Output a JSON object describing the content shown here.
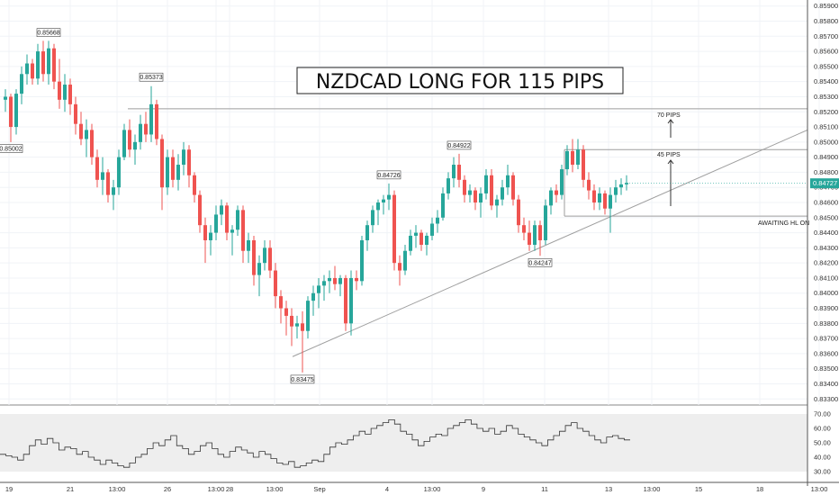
{
  "title": "NZDCAD LONG FOR 115 PIPS",
  "colors": {
    "up": "#26a69a",
    "down": "#ef5350",
    "line": "#9e9e9e",
    "price_tag": "#26a69a"
  },
  "current_price": "0.84727",
  "chart_data": [
    {
      "type": "candlestick",
      "title": "NZDCAD LONG FOR 115 PIPS",
      "ylim": [
        0.8326,
        0.8594
      ],
      "y_ticks": [
        "0.85900",
        "0.85800",
        "0.85700",
        "0.85600",
        "0.85500",
        "0.85400",
        "0.85300",
        "0.85200",
        "0.85100",
        "0.85000",
        "0.84900",
        "0.84800",
        "0.84700",
        "0.84600",
        "0.84500",
        "0.84400",
        "0.84300",
        "0.84200",
        "0.84100",
        "0.84000",
        "0.83900",
        "0.83800",
        "0.83700",
        "0.83600",
        "0.83500",
        "0.83400",
        "0.83300"
      ],
      "x_ticks": [
        "19",
        "21",
        "13:00",
        "26",
        "13:00",
        "28",
        "13:00",
        "Sep",
        "4",
        "13:00",
        "9",
        "11",
        "13",
        "13:00",
        "15",
        "18",
        "13:00"
      ],
      "grid": true,
      "swing_labels": [
        {
          "idx": 8,
          "price": 0.85668,
          "label": "0.85668",
          "pos": "above"
        },
        {
          "idx": 1,
          "price": 0.85002,
          "label": "0.85002",
          "pos": "below"
        },
        {
          "idx": 27,
          "price": 0.85373,
          "label": "0.85373",
          "pos": "above"
        },
        {
          "idx": 55,
          "price": 0.83475,
          "label": "0.83475",
          "pos": "below"
        },
        {
          "idx": 71,
          "price": 0.84726,
          "label": "0.84726",
          "pos": "above"
        },
        {
          "idx": 84,
          "price": 0.84922,
          "label": "0.84922",
          "pos": "above"
        },
        {
          "idx": 99,
          "price": 0.84247,
          "label": "0.84247",
          "pos": "below"
        }
      ],
      "annotations": [
        {
          "text": "70 PIPS"
        },
        {
          "text": "45 PIPS"
        },
        {
          "text": "AWAITING HL ON"
        }
      ],
      "levels": {
        "resistance_high": 0.8522,
        "target_line": 0.8495,
        "entry_line": 0.8451,
        "trend_start": [
          53,
          0.8358
        ],
        "trend_end": [
          150,
          0.8508
        ]
      },
      "candles": [
        {
          "o": 0.8528,
          "h": 0.8535,
          "l": 0.852,
          "c": 0.853
        },
        {
          "o": 0.853,
          "h": 0.8532,
          "l": 0.85,
          "c": 0.851
        },
        {
          "o": 0.851,
          "h": 0.8535,
          "l": 0.8505,
          "c": 0.8532
        },
        {
          "o": 0.8532,
          "h": 0.855,
          "l": 0.8525,
          "c": 0.8545
        },
        {
          "o": 0.8545,
          "h": 0.8558,
          "l": 0.8538,
          "c": 0.8552
        },
        {
          "o": 0.8552,
          "h": 0.8555,
          "l": 0.8538,
          "c": 0.8542
        },
        {
          "o": 0.8542,
          "h": 0.8565,
          "l": 0.8538,
          "c": 0.856
        },
        {
          "o": 0.856,
          "h": 0.8567,
          "l": 0.854,
          "c": 0.8545
        },
        {
          "o": 0.8545,
          "h": 0.8567,
          "l": 0.8538,
          "c": 0.8562
        },
        {
          "o": 0.8562,
          "h": 0.8565,
          "l": 0.8535,
          "c": 0.854
        },
        {
          "o": 0.854,
          "h": 0.8555,
          "l": 0.8522,
          "c": 0.8528
        },
        {
          "o": 0.8528,
          "h": 0.8545,
          "l": 0.852,
          "c": 0.8538
        },
        {
          "o": 0.8538,
          "h": 0.8542,
          "l": 0.8518,
          "c": 0.8525
        },
        {
          "o": 0.8525,
          "h": 0.853,
          "l": 0.8505,
          "c": 0.8512
        },
        {
          "o": 0.8512,
          "h": 0.852,
          "l": 0.8498,
          "c": 0.8502
        },
        {
          "o": 0.8502,
          "h": 0.8515,
          "l": 0.849,
          "c": 0.8508
        },
        {
          "o": 0.8508,
          "h": 0.8512,
          "l": 0.8485,
          "c": 0.849
        },
        {
          "o": 0.849,
          "h": 0.8495,
          "l": 0.847,
          "c": 0.8475
        },
        {
          "o": 0.8475,
          "h": 0.849,
          "l": 0.8465,
          "c": 0.848
        },
        {
          "o": 0.848,
          "h": 0.8482,
          "l": 0.846,
          "c": 0.8465
        },
        {
          "o": 0.8465,
          "h": 0.8475,
          "l": 0.8455,
          "c": 0.847
        },
        {
          "o": 0.847,
          "h": 0.8495,
          "l": 0.8465,
          "c": 0.849
        },
        {
          "o": 0.849,
          "h": 0.8512,
          "l": 0.8488,
          "c": 0.8508
        },
        {
          "o": 0.8508,
          "h": 0.8515,
          "l": 0.849,
          "c": 0.8495
        },
        {
          "o": 0.8495,
          "h": 0.8505,
          "l": 0.8485,
          "c": 0.85
        },
        {
          "o": 0.85,
          "h": 0.8518,
          "l": 0.8495,
          "c": 0.8512
        },
        {
          "o": 0.8512,
          "h": 0.852,
          "l": 0.85,
          "c": 0.8505
        },
        {
          "o": 0.8505,
          "h": 0.8537,
          "l": 0.85,
          "c": 0.8525
        },
        {
          "o": 0.8525,
          "h": 0.8528,
          "l": 0.8498,
          "c": 0.8502
        },
        {
          "o": 0.8502,
          "h": 0.8505,
          "l": 0.8455,
          "c": 0.847
        },
        {
          "o": 0.847,
          "h": 0.8495,
          "l": 0.8465,
          "c": 0.849
        },
        {
          "o": 0.849,
          "h": 0.8495,
          "l": 0.847,
          "c": 0.8475
        },
        {
          "o": 0.8475,
          "h": 0.8492,
          "l": 0.8468,
          "c": 0.8485
        },
        {
          "o": 0.8485,
          "h": 0.85,
          "l": 0.8478,
          "c": 0.8495
        },
        {
          "o": 0.8495,
          "h": 0.8498,
          "l": 0.847,
          "c": 0.8478
        },
        {
          "o": 0.8478,
          "h": 0.848,
          "l": 0.846,
          "c": 0.8465
        },
        {
          "o": 0.8465,
          "h": 0.8468,
          "l": 0.844,
          "c": 0.8445
        },
        {
          "o": 0.8445,
          "h": 0.845,
          "l": 0.842,
          "c": 0.8435
        },
        {
          "o": 0.8435,
          "h": 0.8445,
          "l": 0.8425,
          "c": 0.844
        },
        {
          "o": 0.844,
          "h": 0.8458,
          "l": 0.8435,
          "c": 0.8452
        },
        {
          "o": 0.8452,
          "h": 0.8462,
          "l": 0.8445,
          "c": 0.8458
        },
        {
          "o": 0.8458,
          "h": 0.846,
          "l": 0.8435,
          "c": 0.844
        },
        {
          "o": 0.844,
          "h": 0.8445,
          "l": 0.8425,
          "c": 0.8442
        },
        {
          "o": 0.8442,
          "h": 0.8458,
          "l": 0.8438,
          "c": 0.8455
        },
        {
          "o": 0.8455,
          "h": 0.8458,
          "l": 0.842,
          "c": 0.8428
        },
        {
          "o": 0.8428,
          "h": 0.844,
          "l": 0.842,
          "c": 0.8435
        },
        {
          "o": 0.8435,
          "h": 0.8438,
          "l": 0.8405,
          "c": 0.8412
        },
        {
          "o": 0.8412,
          "h": 0.8425,
          "l": 0.8398,
          "c": 0.842
        },
        {
          "o": 0.842,
          "h": 0.8435,
          "l": 0.8415,
          "c": 0.843
        },
        {
          "o": 0.843,
          "h": 0.8435,
          "l": 0.841,
          "c": 0.8415
        },
        {
          "o": 0.8415,
          "h": 0.842,
          "l": 0.839,
          "c": 0.8398
        },
        {
          "o": 0.8398,
          "h": 0.8402,
          "l": 0.838,
          "c": 0.839
        },
        {
          "o": 0.839,
          "h": 0.8395,
          "l": 0.8372,
          "c": 0.8385
        },
        {
          "o": 0.8385,
          "h": 0.839,
          "l": 0.8365,
          "c": 0.8378
        },
        {
          "o": 0.8378,
          "h": 0.8385,
          "l": 0.837,
          "c": 0.838
        },
        {
          "o": 0.838,
          "h": 0.8388,
          "l": 0.83475,
          "c": 0.8375
        },
        {
          "o": 0.8375,
          "h": 0.8398,
          "l": 0.837,
          "c": 0.8395
        },
        {
          "o": 0.8395,
          "h": 0.8405,
          "l": 0.8385,
          "c": 0.84
        },
        {
          "o": 0.84,
          "h": 0.841,
          "l": 0.839,
          "c": 0.8405
        },
        {
          "o": 0.8405,
          "h": 0.8412,
          "l": 0.8395,
          "c": 0.8408
        },
        {
          "o": 0.8408,
          "h": 0.8415,
          "l": 0.84,
          "c": 0.841
        },
        {
          "o": 0.841,
          "h": 0.8418,
          "l": 0.8402,
          "c": 0.8406
        },
        {
          "o": 0.8406,
          "h": 0.8412,
          "l": 0.8398,
          "c": 0.841
        },
        {
          "o": 0.841,
          "h": 0.8412,
          "l": 0.8375,
          "c": 0.838
        },
        {
          "o": 0.838,
          "h": 0.8415,
          "l": 0.8372,
          "c": 0.841
        },
        {
          "o": 0.841,
          "h": 0.8415,
          "l": 0.8402,
          "c": 0.8408
        },
        {
          "o": 0.8408,
          "h": 0.8438,
          "l": 0.8405,
          "c": 0.8435
        },
        {
          "o": 0.8435,
          "h": 0.8448,
          "l": 0.8428,
          "c": 0.8445
        },
        {
          "o": 0.8445,
          "h": 0.8458,
          "l": 0.844,
          "c": 0.8455
        },
        {
          "o": 0.8455,
          "h": 0.8462,
          "l": 0.8445,
          "c": 0.846
        },
        {
          "o": 0.846,
          "h": 0.8465,
          "l": 0.8452,
          "c": 0.8462
        },
        {
          "o": 0.8462,
          "h": 0.84726,
          "l": 0.8455,
          "c": 0.8465
        },
        {
          "o": 0.8465,
          "h": 0.8468,
          "l": 0.8415,
          "c": 0.842
        },
        {
          "o": 0.842,
          "h": 0.8425,
          "l": 0.8405,
          "c": 0.8415
        },
        {
          "o": 0.8415,
          "h": 0.8432,
          "l": 0.8412,
          "c": 0.8428
        },
        {
          "o": 0.8428,
          "h": 0.8442,
          "l": 0.8425,
          "c": 0.8438
        },
        {
          "o": 0.8438,
          "h": 0.8445,
          "l": 0.843,
          "c": 0.844
        },
        {
          "o": 0.844,
          "h": 0.8442,
          "l": 0.8428,
          "c": 0.8432
        },
        {
          "o": 0.8432,
          "h": 0.844,
          "l": 0.8425,
          "c": 0.8438
        },
        {
          "o": 0.8438,
          "h": 0.845,
          "l": 0.8435,
          "c": 0.8446
        },
        {
          "o": 0.8446,
          "h": 0.8455,
          "l": 0.844,
          "c": 0.845
        },
        {
          "o": 0.845,
          "h": 0.847,
          "l": 0.8448,
          "c": 0.8466
        },
        {
          "o": 0.8466,
          "h": 0.848,
          "l": 0.8462,
          "c": 0.8476
        },
        {
          "o": 0.8476,
          "h": 0.849,
          "l": 0.847,
          "c": 0.8485
        },
        {
          "o": 0.8485,
          "h": 0.84922,
          "l": 0.847,
          "c": 0.8475
        },
        {
          "o": 0.8475,
          "h": 0.8478,
          "l": 0.846,
          "c": 0.8465
        },
        {
          "o": 0.8465,
          "h": 0.8472,
          "l": 0.846,
          "c": 0.8468
        },
        {
          "o": 0.8468,
          "h": 0.847,
          "l": 0.8455,
          "c": 0.846
        },
        {
          "o": 0.846,
          "h": 0.847,
          "l": 0.845,
          "c": 0.8466
        },
        {
          "o": 0.8466,
          "h": 0.8482,
          "l": 0.8462,
          "c": 0.8478
        },
        {
          "o": 0.8478,
          "h": 0.8482,
          "l": 0.8455,
          "c": 0.8458
        },
        {
          "o": 0.8458,
          "h": 0.8465,
          "l": 0.845,
          "c": 0.8462
        },
        {
          "o": 0.8462,
          "h": 0.8475,
          "l": 0.8458,
          "c": 0.847
        },
        {
          "o": 0.847,
          "h": 0.8485,
          "l": 0.8465,
          "c": 0.8478
        },
        {
          "o": 0.8478,
          "h": 0.848,
          "l": 0.8458,
          "c": 0.8462
        },
        {
          "o": 0.8462,
          "h": 0.8465,
          "l": 0.844,
          "c": 0.8445
        },
        {
          "o": 0.8445,
          "h": 0.845,
          "l": 0.8435,
          "c": 0.844
        },
        {
          "o": 0.844,
          "h": 0.8448,
          "l": 0.8428,
          "c": 0.8432
        },
        {
          "o": 0.8432,
          "h": 0.8448,
          "l": 0.8428,
          "c": 0.8445
        },
        {
          "o": 0.8445,
          "h": 0.8448,
          "l": 0.84247,
          "c": 0.8435
        },
        {
          "o": 0.8435,
          "h": 0.8462,
          "l": 0.8432,
          "c": 0.8458
        },
        {
          "o": 0.8458,
          "h": 0.847,
          "l": 0.8452,
          "c": 0.8468
        },
        {
          "o": 0.8468,
          "h": 0.8472,
          "l": 0.846,
          "c": 0.8465
        },
        {
          "o": 0.8465,
          "h": 0.8485,
          "l": 0.8462,
          "c": 0.8482
        },
        {
          "o": 0.8482,
          "h": 0.8498,
          "l": 0.8478,
          "c": 0.8494
        },
        {
          "o": 0.8494,
          "h": 0.8502,
          "l": 0.848,
          "c": 0.8485
        },
        {
          "o": 0.8485,
          "h": 0.8502,
          "l": 0.8482,
          "c": 0.8495
        },
        {
          "o": 0.8495,
          "h": 0.8498,
          "l": 0.847,
          "c": 0.8475
        },
        {
          "o": 0.8475,
          "h": 0.848,
          "l": 0.8462,
          "c": 0.8468
        },
        {
          "o": 0.8468,
          "h": 0.8472,
          "l": 0.8455,
          "c": 0.846
        },
        {
          "o": 0.846,
          "h": 0.847,
          "l": 0.8455,
          "c": 0.8466
        },
        {
          "o": 0.8466,
          "h": 0.8468,
          "l": 0.8452,
          "c": 0.8456
        },
        {
          "o": 0.8456,
          "h": 0.847,
          "l": 0.844,
          "c": 0.8465
        },
        {
          "o": 0.8465,
          "h": 0.8475,
          "l": 0.846,
          "c": 0.847
        },
        {
          "o": 0.847,
          "h": 0.8476,
          "l": 0.8465,
          "c": 0.8472
        },
        {
          "o": 0.8472,
          "h": 0.8478,
          "l": 0.8468,
          "c": 0.8473
        }
      ],
      "rsi": {
        "ylim": [
          25,
          75
        ],
        "y_ticks": [
          "70.00",
          "60.00",
          "50.00",
          "40.00",
          "30.00"
        ],
        "band": [
          30,
          70
        ],
        "values": [
          42,
          41,
          40,
          38,
          42,
          48,
          52,
          49,
          53,
          50,
          45,
          47,
          46,
          42,
          44,
          40,
          38,
          35,
          38,
          36,
          34,
          33,
          36,
          40,
          42,
          46,
          50,
          48,
          52,
          55,
          48,
          46,
          42,
          44,
          48,
          50,
          46,
          42,
          40,
          44,
          47,
          45,
          43,
          40,
          44,
          42,
          39,
          36,
          35,
          37,
          33,
          34,
          36,
          38,
          37,
          42,
          47,
          50,
          49,
          52,
          55,
          58,
          56,
          60,
          62,
          64,
          66,
          63,
          58,
          56,
          52,
          48,
          51,
          54,
          56,
          55,
          60,
          62,
          64,
          66,
          63,
          60,
          58,
          60,
          56,
          58,
          62,
          60,
          56,
          54,
          52,
          50,
          48,
          52,
          55,
          58,
          62,
          64,
          60,
          58,
          55,
          52,
          50,
          54,
          55,
          53,
          52
        ]
      }
    }
  ]
}
